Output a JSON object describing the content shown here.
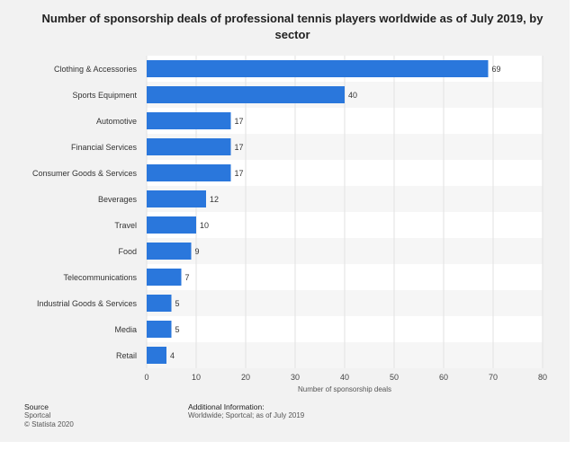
{
  "header": {
    "title": "Number of sponsorship deals of professional tennis players worldwide as of July 2019, by sector"
  },
  "chart_data": {
    "type": "bar",
    "orientation": "horizontal",
    "categories": [
      "Clothing & Accessories",
      "Sports Equipment",
      "Automotive",
      "Financial Services",
      "Consumer Goods & Services",
      "Beverages",
      "Travel",
      "Food",
      "Telecommunications",
      "Industrial Goods & Services",
      "Media",
      "Retail"
    ],
    "values": [
      69,
      40,
      17,
      17,
      17,
      12,
      10,
      9,
      7,
      5,
      5,
      4
    ],
    "xlabel": "Number of sponsorship deals",
    "xlim": [
      0,
      80
    ],
    "xticks": [
      0,
      10,
      20,
      30,
      40,
      50,
      60,
      70,
      80
    ],
    "grid": true,
    "bar_color": "#2a77dc",
    "value_labels": true
  },
  "footer": {
    "source_head": "Source",
    "source_line1": "Sportcal",
    "source_line2": "© Statista 2020",
    "info_head": "Additional Information:",
    "info_line": "Worldwide; Sportcal; as of July 2019"
  }
}
